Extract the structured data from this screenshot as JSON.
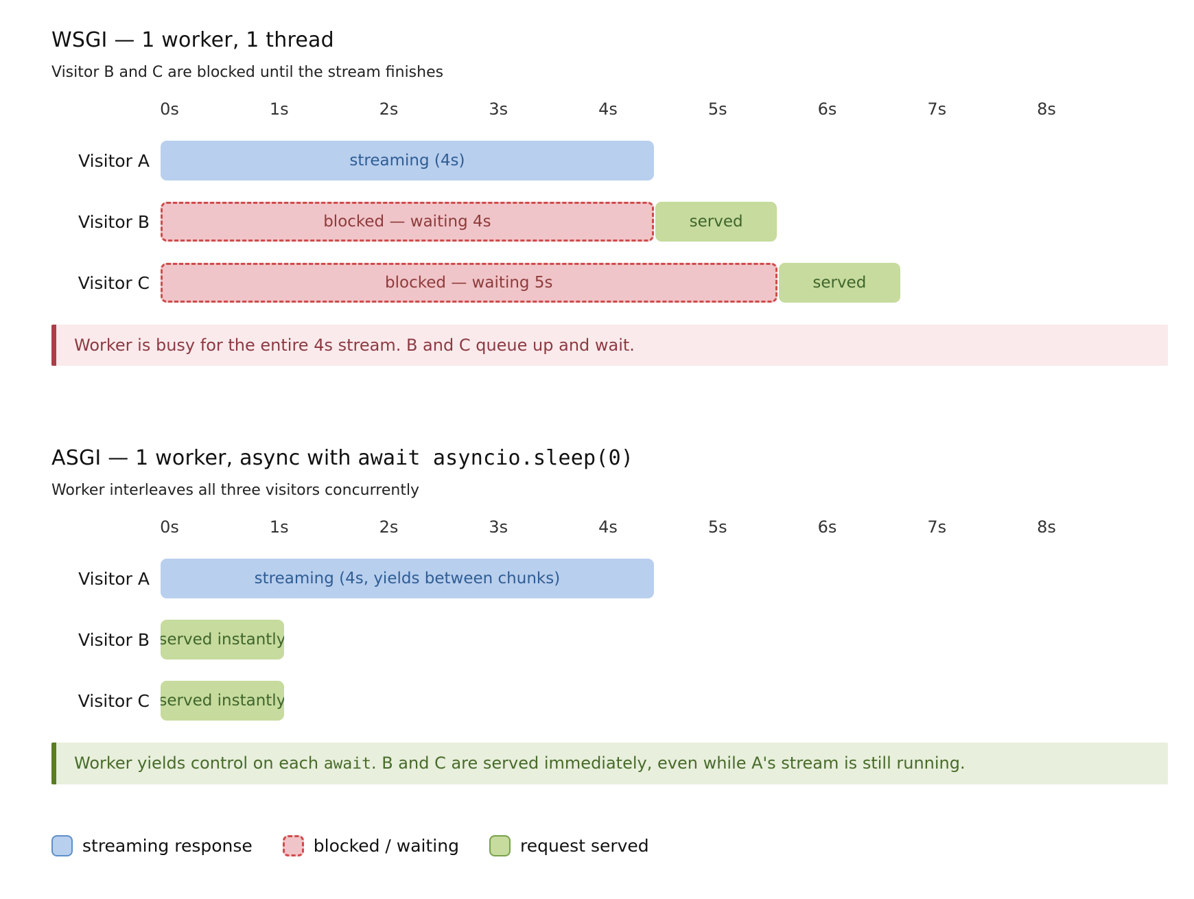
{
  "colors": {
    "streaming_fill": "#b9cfee",
    "streaming_border": "#5d8fc9",
    "streaming_text": "#2e5d94",
    "blocked_fill": "#f0c5c9",
    "blocked_border": "#cf4b4b",
    "blocked_text": "#8e3b3b",
    "served_fill": "#c6db9d",
    "served_border": "#78a24c",
    "served_text": "#40652c",
    "callout_red_bg": "#faeaec",
    "callout_red_border": "#ab3e47",
    "callout_red_text": "#8c3a42",
    "callout_green_bg": "#e8efdc",
    "callout_green_border": "#5a7c23",
    "callout_green_text": "#486b2a"
  },
  "chart_data": [
    {
      "type": "gantt",
      "title_parts": [
        {
          "text": "WSGI — 1 worker, 1 thread",
          "code": false
        }
      ],
      "subtitle": "Visitor B and C are blocked until the stream finishes",
      "x_ticks": [
        "0s",
        "1s",
        "2s",
        "3s",
        "4s",
        "5s",
        "6s",
        "7s",
        "8s"
      ],
      "x_range_s": [
        0,
        8
      ],
      "rows": [
        {
          "label": "Visitor A",
          "bars": [
            {
              "kind": "streaming",
              "start_s": 0,
              "duration_s": 4,
              "label": "streaming (4s)"
            }
          ]
        },
        {
          "label": "Visitor B",
          "bars": [
            {
              "kind": "blocked",
              "start_s": 0,
              "duration_s": 4,
              "label": "blocked — waiting 4s"
            },
            {
              "kind": "served",
              "start_s": 4,
              "duration_s": 1,
              "label": "served"
            }
          ]
        },
        {
          "label": "Visitor C",
          "bars": [
            {
              "kind": "blocked",
              "start_s": 0,
              "duration_s": 5,
              "label": "blocked — waiting 5s"
            },
            {
              "kind": "served",
              "start_s": 5,
              "duration_s": 1,
              "label": "served"
            }
          ]
        }
      ],
      "callout": {
        "tone": "red",
        "text_parts": [
          {
            "text": "Worker is busy for the entire 4s stream. B and C queue up and wait.",
            "code": false
          }
        ]
      }
    },
    {
      "type": "gantt",
      "title_parts": [
        {
          "text": "ASGI — 1 worker, async with ",
          "code": false
        },
        {
          "text": "await asyncio.sleep(0)",
          "code": true
        }
      ],
      "subtitle": "Worker interleaves all three visitors concurrently",
      "x_ticks": [
        "0s",
        "1s",
        "2s",
        "3s",
        "4s",
        "5s",
        "6s",
        "7s",
        "8s"
      ],
      "x_range_s": [
        0,
        8
      ],
      "rows": [
        {
          "label": "Visitor A",
          "bars": [
            {
              "kind": "streaming",
              "start_s": 0,
              "duration_s": 4,
              "label": "streaming (4s, yields between chunks)"
            }
          ]
        },
        {
          "label": "Visitor B",
          "bars": [
            {
              "kind": "served",
              "start_s": 0,
              "duration_s": 1,
              "label": "served instantly"
            }
          ]
        },
        {
          "label": "Visitor C",
          "bars": [
            {
              "kind": "served",
              "start_s": 0,
              "duration_s": 1,
              "label": "served instantly"
            }
          ]
        }
      ],
      "callout": {
        "tone": "green",
        "text_parts": [
          {
            "text": "Worker yields control on each ",
            "code": false
          },
          {
            "text": "await",
            "code": true
          },
          {
            "text": ". B and C are served immediately, even while A's stream is still running.",
            "code": false
          }
        ]
      }
    }
  ],
  "legend": {
    "items": [
      {
        "kind": "streaming",
        "label": "streaming response"
      },
      {
        "kind": "blocked",
        "label": "blocked / waiting"
      },
      {
        "kind": "served",
        "label": "request served"
      }
    ]
  }
}
